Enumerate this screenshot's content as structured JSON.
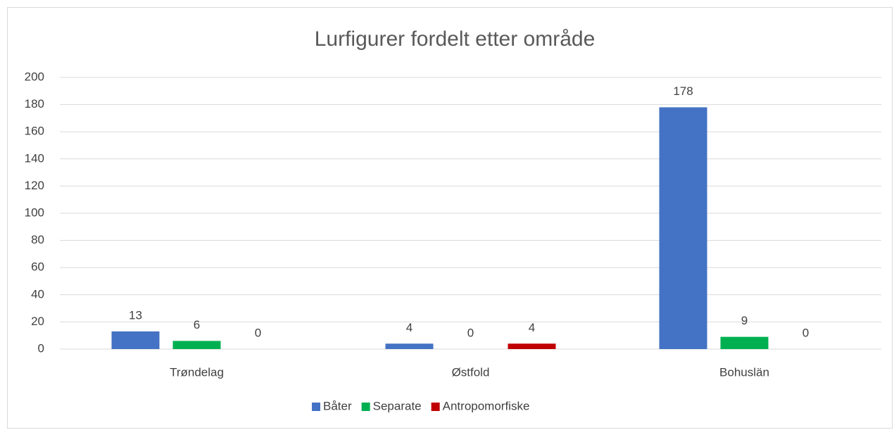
{
  "chart_data": {
    "type": "bar",
    "title": "Lurfigurer fordelt etter område",
    "categories": [
      "Trøndelag",
      "Østfold",
      "Bohuslän"
    ],
    "series": [
      {
        "name": "Båter",
        "color": "#4472c4",
        "values": [
          13,
          4,
          178
        ]
      },
      {
        "name": "Separate",
        "color": "#00b050",
        "values": [
          6,
          0,
          9
        ]
      },
      {
        "name": "Antropomorfiske",
        "color": "#c00000",
        "values": [
          0,
          4,
          0
        ]
      }
    ],
    "ylim": [
      0,
      200
    ],
    "yticks": [
      0,
      20,
      40,
      60,
      80,
      100,
      120,
      140,
      160,
      180,
      200
    ],
    "grid": true,
    "legend": "bottom"
  }
}
